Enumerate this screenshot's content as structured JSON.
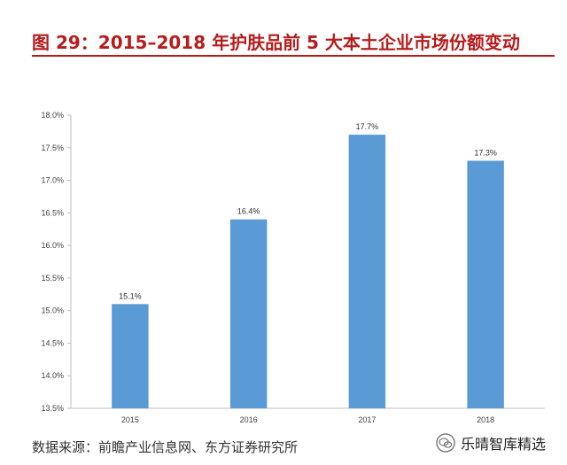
{
  "title": "图 29：2015–2018 年护肤品前 5 大本土企业市场份额变动",
  "source_text": "数据来源：前瞻产业信息网、东方证券研究所",
  "brand_text": "乐晴智库精选",
  "colors": {
    "title": "#b71c1c",
    "bar": "#5b9bd5",
    "grid": "#d9d9d9"
  },
  "chart_data": {
    "type": "bar",
    "categories": [
      "2015",
      "2016",
      "2017",
      "2018"
    ],
    "values": [
      15.1,
      16.4,
      17.7,
      17.3
    ],
    "data_labels": [
      "15.1%",
      "16.4%",
      "17.7%",
      "17.3%"
    ],
    "ylim": [
      13.5,
      18.0
    ],
    "yticks": [
      13.5,
      14.0,
      14.5,
      15.0,
      15.5,
      16.0,
      16.5,
      17.0,
      17.5,
      18.0
    ],
    "ytick_labels": [
      "13.5%",
      "14.0%",
      "14.5%",
      "15.0%",
      "15.5%",
      "16.0%",
      "16.5%",
      "17.0%",
      "17.5%",
      "18.0%"
    ],
    "grid": false
  }
}
